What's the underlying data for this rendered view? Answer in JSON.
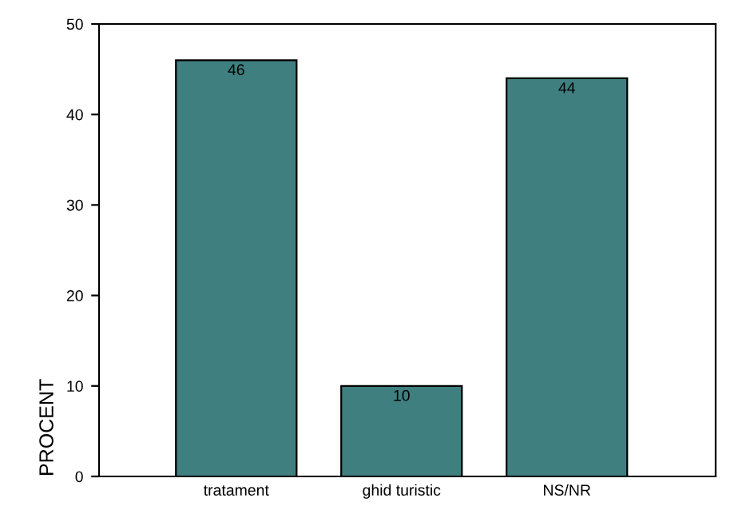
{
  "chart_data": {
    "type": "bar",
    "ylabel": "PROCENT",
    "categories": [
      "tratament",
      "ghid turistic",
      "NS/NR"
    ],
    "values": [
      46,
      10,
      44
    ],
    "color": "#3f7f7f",
    "ylim": [
      0,
      50
    ],
    "yticks": [
      0,
      10,
      20,
      30,
      40,
      50
    ],
    "grid": false,
    "data_labels": true
  }
}
